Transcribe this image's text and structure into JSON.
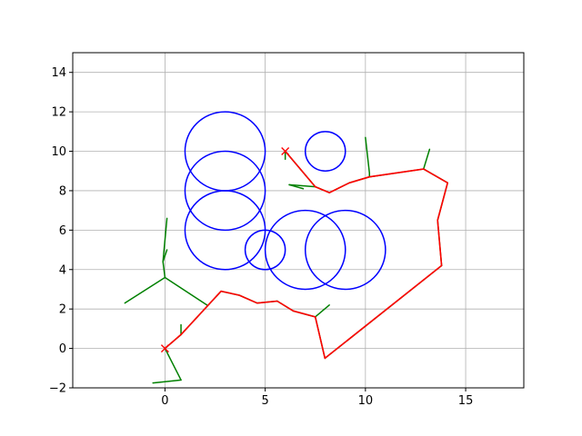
{
  "chart_data": {
    "type": "line",
    "title": "",
    "xlabel": "",
    "ylabel": "",
    "xlim": [
      -4.6,
      17.9
    ],
    "ylim": [
      -2,
      15
    ],
    "xticks": [
      0,
      5,
      10,
      15
    ],
    "yticks": [
      -2,
      0,
      2,
      4,
      6,
      8,
      10,
      12,
      14
    ],
    "xtick_labels": [
      "0",
      "5",
      "10",
      "15"
    ],
    "ytick_labels": [
      "−2",
      "0",
      "2",
      "4",
      "6",
      "8",
      "10",
      "12",
      "14"
    ],
    "grid": true,
    "legend": false,
    "colors": {
      "circles": "#0000ff",
      "tree": "#008000",
      "path": "#ff0000",
      "markers": "#ff0000",
      "grid": "#b0b0b0"
    },
    "circles": [
      {
        "cx": 3,
        "cy": 10,
        "r": 2
      },
      {
        "cx": 3,
        "cy": 8,
        "r": 2
      },
      {
        "cx": 3,
        "cy": 6,
        "r": 2
      },
      {
        "cx": 8,
        "cy": 10,
        "r": 1
      },
      {
        "cx": 5,
        "cy": 5,
        "r": 1
      },
      {
        "cx": 7,
        "cy": 5,
        "r": 2
      },
      {
        "cx": 9,
        "cy": 5,
        "r": 2
      }
    ],
    "markers": [
      {
        "x": 0,
        "y": 0
      },
      {
        "x": 6,
        "y": 10
      }
    ],
    "tree_edges": [
      [
        [
          0,
          0
        ],
        [
          0.8,
          -1.6
        ]
      ],
      [
        [
          0.8,
          -1.6
        ],
        [
          -0.6,
          -1.75
        ]
      ],
      [
        [
          0,
          0
        ],
        [
          0.8,
          0.7
        ]
      ],
      [
        [
          0.8,
          0.7
        ],
        [
          0.8,
          1.2
        ]
      ],
      [
        [
          0.8,
          0.7
        ],
        [
          2.8,
          2.9
        ]
      ],
      [
        [
          2.8,
          2.9
        ],
        [
          3.7,
          2.7
        ]
      ],
      [
        [
          3.7,
          2.7
        ],
        [
          4.6,
          2.3
        ]
      ],
      [
        [
          4.6,
          2.3
        ],
        [
          5.6,
          2.4
        ]
      ],
      [
        [
          5.6,
          2.4
        ],
        [
          6.4,
          1.9
        ]
      ],
      [
        [
          6.4,
          1.9
        ],
        [
          7.5,
          1.6
        ]
      ],
      [
        [
          7.5,
          1.6
        ],
        [
          8.2,
          2.2
        ]
      ],
      [
        [
          7.5,
          1.6
        ],
        [
          7.98,
          -0.5
        ]
      ],
      [
        [
          7.98,
          -0.5
        ],
        [
          13.8,
          4.2
        ]
      ],
      [
        [
          13.8,
          4.2
        ],
        [
          13.6,
          6.5
        ]
      ],
      [
        [
          13.6,
          6.5
        ],
        [
          14.1,
          8.4
        ]
      ],
      [
        [
          14.1,
          8.4
        ],
        [
          12.9,
          9.1
        ]
      ],
      [
        [
          12.9,
          9.1
        ],
        [
          13.2,
          10.1
        ]
      ],
      [
        [
          12.9,
          9.1
        ],
        [
          10.2,
          8.7
        ]
      ],
      [
        [
          10.2,
          8.7
        ],
        [
          10.2,
          8.9
        ]
      ],
      [
        [
          10.2,
          8.9
        ],
        [
          10.0,
          10.7
        ]
      ],
      [
        [
          10.2,
          8.7
        ],
        [
          9.2,
          8.4
        ]
      ],
      [
        [
          9.2,
          8.4
        ],
        [
          8.2,
          7.9
        ]
      ],
      [
        [
          8.2,
          7.9
        ],
        [
          7.5,
          8.2
        ]
      ],
      [
        [
          7.5,
          8.2
        ],
        [
          6.2,
          8.3
        ]
      ],
      [
        [
          6.2,
          8.3
        ],
        [
          6.9,
          8.1
        ]
      ],
      [
        [
          7.5,
          8.2
        ],
        [
          6.0,
          10.0
        ]
      ],
      [
        [
          6.0,
          10.0
        ],
        [
          6.0,
          9.6
        ]
      ],
      [
        [
          2.1,
          2.2
        ],
        [
          0.0,
          3.6
        ]
      ],
      [
        [
          0.0,
          3.6
        ],
        [
          -2.0,
          2.3
        ]
      ],
      [
        [
          0.0,
          3.6
        ],
        [
          -0.1,
          4.4
        ]
      ],
      [
        [
          -0.1,
          4.4
        ],
        [
          0.1,
          5.0
        ]
      ],
      [
        [
          -0.1,
          4.4
        ],
        [
          0.1,
          6.6
        ]
      ]
    ],
    "path": [
      [
        0,
        0
      ],
      [
        0.8,
        0.7
      ],
      [
        2.8,
        2.9
      ],
      [
        3.7,
        2.7
      ],
      [
        4.6,
        2.3
      ],
      [
        5.6,
        2.4
      ],
      [
        6.4,
        1.9
      ],
      [
        7.5,
        1.6
      ],
      [
        7.98,
        -0.5
      ],
      [
        13.8,
        4.2
      ],
      [
        13.6,
        6.5
      ],
      [
        14.1,
        8.4
      ],
      [
        12.9,
        9.1
      ],
      [
        10.2,
        8.7
      ],
      [
        9.2,
        8.4
      ],
      [
        8.2,
        7.9
      ],
      [
        7.5,
        8.2
      ],
      [
        6.0,
        10.0
      ]
    ]
  }
}
